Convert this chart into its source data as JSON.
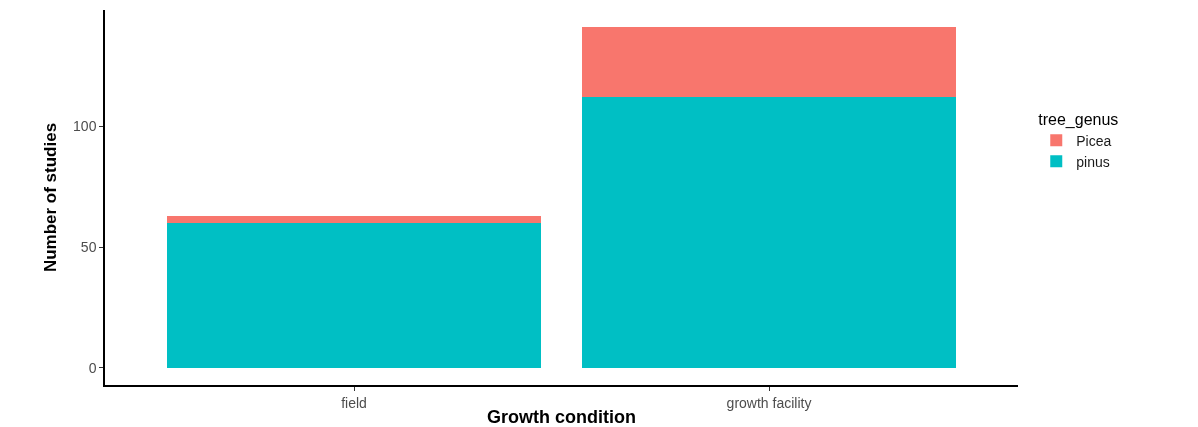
{
  "chart_data": {
    "type": "bar",
    "stacked": true,
    "xlabel": "Growth condition",
    "ylabel": "Number of studies",
    "legend_title": "tree_genus",
    "categories": [
      "field",
      "growth facility"
    ],
    "series": [
      {
        "name": "pinus",
        "color": "#00bfc4",
        "values": [
          60,
          112
        ]
      },
      {
        "name": "Picea",
        "color": "#f8766d",
        "values": [
          3,
          29
        ]
      }
    ],
    "ylim": [
      -7.05,
      148.05
    ],
    "yticks": [
      0,
      50,
      100
    ],
    "grid": false,
    "legend": "right"
  }
}
